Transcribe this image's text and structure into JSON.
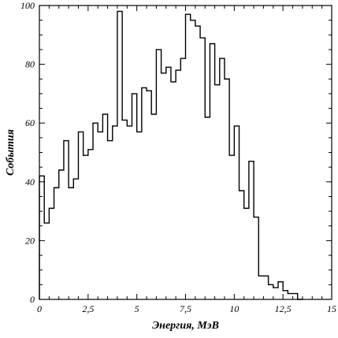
{
  "chart_data": {
    "type": "line",
    "style": "step-histogram",
    "title": "",
    "xlabel": "Энергия, МэВ",
    "ylabel": "События",
    "xlim": [
      0,
      15
    ],
    "ylim": [
      0,
      100
    ],
    "grid": false,
    "bin_width": 0.25,
    "x_ticks": [
      0,
      2.5,
      5,
      7.5,
      10,
      12.5,
      15
    ],
    "x_tick_labels": [
      "0",
      "2,5",
      "5",
      "7,5",
      "10",
      "12,5",
      "15"
    ],
    "y_ticks": [
      0,
      20,
      40,
      60,
      80,
      100
    ],
    "y_tick_labels": [
      "0",
      "20",
      "40",
      "60",
      "80",
      "100"
    ],
    "bins_start": [
      0,
      0.25,
      0.5,
      0.75,
      1,
      1.25,
      1.5,
      1.75,
      2,
      2.25,
      2.5,
      2.75,
      3,
      3.25,
      3.5,
      3.75,
      4,
      4.25,
      4.5,
      4.75,
      5,
      5.25,
      5.5,
      5.75,
      6,
      6.25,
      6.5,
      6.75,
      7,
      7.25,
      7.5,
      7.75,
      8,
      8.25,
      8.5,
      8.75,
      9,
      9.25,
      9.5,
      9.75,
      10,
      10.25,
      10.5,
      10.75,
      11,
      11.25,
      11.5,
      11.75,
      12,
      12.25,
      12.5,
      12.75,
      13,
      13.25
    ],
    "values": [
      42,
      26,
      31,
      38,
      44,
      54,
      38,
      41,
      57,
      49,
      51,
      60,
      57,
      63,
      54,
      59,
      98,
      61,
      59,
      70,
      57,
      72,
      71,
      63,
      85,
      77,
      79,
      74,
      78,
      82,
      97,
      95,
      93,
      89,
      62,
      87,
      73,
      82,
      75,
      49,
      59,
      37,
      31,
      47,
      28,
      8,
      8,
      5,
      4,
      6,
      3,
      2,
      2,
      0
    ],
    "line_color": "#000000",
    "background": "#ffffff"
  }
}
